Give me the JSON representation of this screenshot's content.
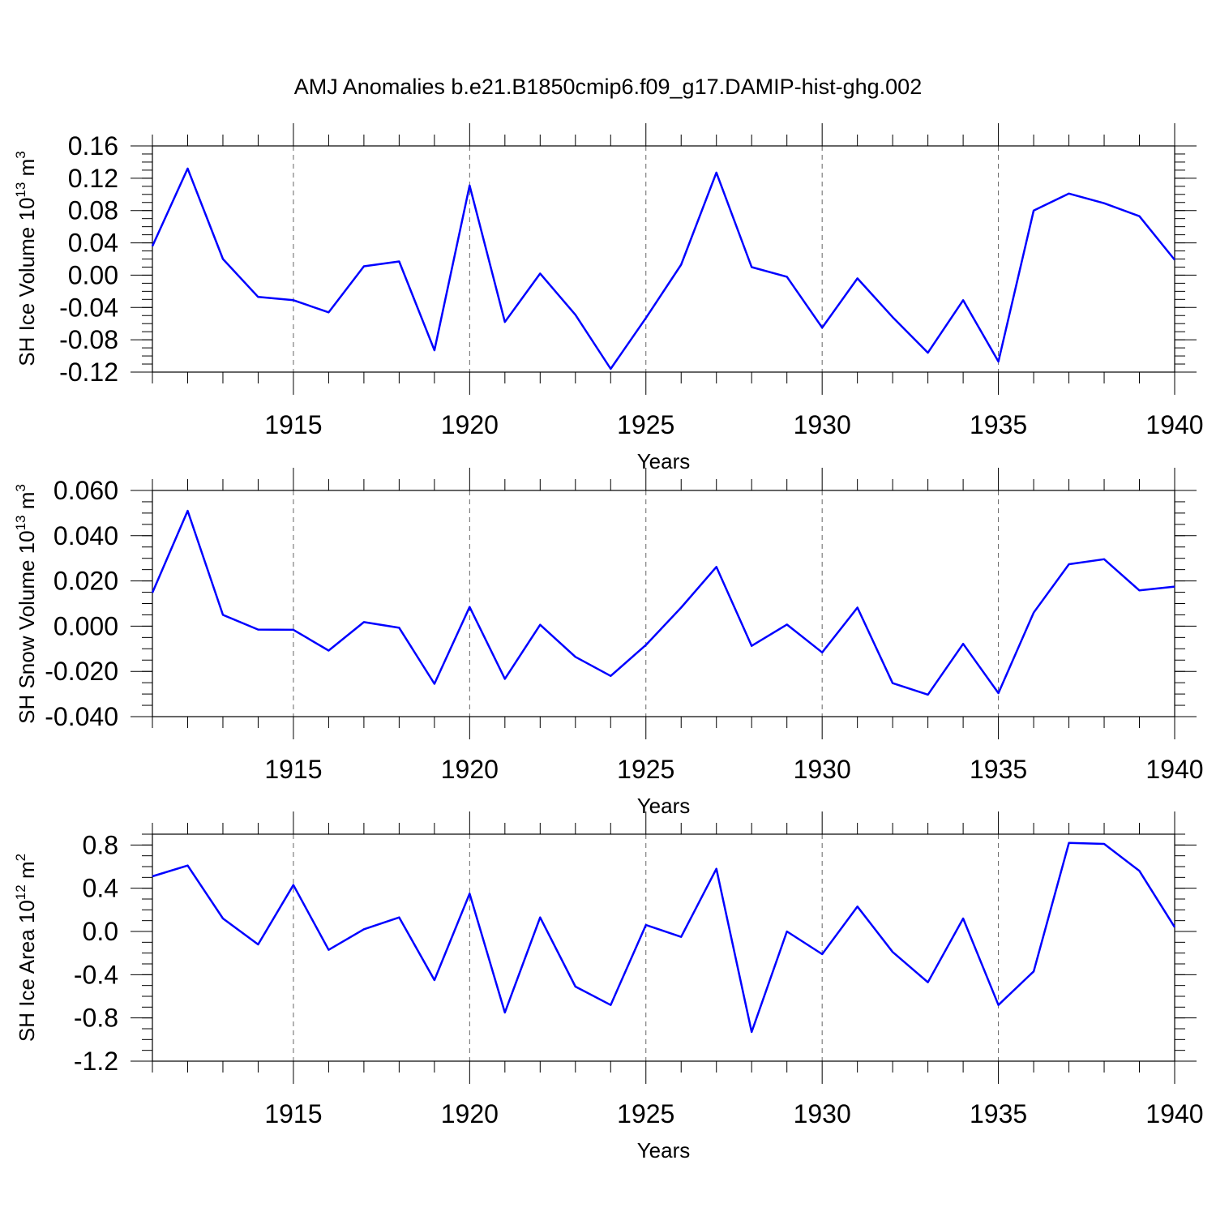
{
  "title": "AMJ Anomalies b.e21.B1850cmip6.f09_g17.DAMIP-hist-ghg.002",
  "colors": {
    "series": "#0000ff",
    "axis": "#000000",
    "grid": "#666666"
  },
  "chart_data": [
    {
      "type": "line",
      "xlabel": "Years",
      "ylabel": {
        "main": "SH Ice Volume 10",
        "exp": "13",
        "unit": " m",
        "unit_exp": "3"
      },
      "xlim": [
        1911,
        1940
      ],
      "ylim": [
        -0.12,
        0.16
      ],
      "xticks": [
        1915,
        1920,
        1925,
        1930,
        1935,
        1940
      ],
      "yticks": [
        -0.12,
        -0.08,
        -0.04,
        0.0,
        0.04,
        0.08,
        0.12,
        0.16
      ],
      "ytick_labels": [
        "-0.12",
        "-0.08",
        "-0.04",
        "0.00",
        "0.04",
        "0.08",
        "0.12",
        "0.16"
      ],
      "grid": "vertical dashed at major x ticks",
      "x": [
        1911,
        1912,
        1913,
        1914,
        1915,
        1916,
        1917,
        1918,
        1919,
        1920,
        1921,
        1922,
        1923,
        1924,
        1925,
        1926,
        1927,
        1928,
        1929,
        1930,
        1931,
        1932,
        1933,
        1934,
        1935,
        1936,
        1937,
        1938,
        1939,
        1940
      ],
      "series": [
        {
          "values": [
            0.036,
            0.132,
            0.02,
            -0.027,
            -0.031,
            -0.046,
            0.011,
            0.017,
            -0.093,
            0.111,
            -0.058,
            0.002,
            -0.049,
            -0.116,
            -0.053,
            0.013,
            0.127,
            0.01,
            -0.002,
            -0.065,
            -0.004,
            -0.052,
            -0.096,
            -0.031,
            -0.107,
            0.08,
            0.101,
            0.089,
            0.073,
            0.019
          ]
        }
      ]
    },
    {
      "type": "line",
      "xlabel": "Years",
      "ylabel": {
        "main": "SH Snow Volume 10",
        "exp": "13",
        "unit": " m",
        "unit_exp": "3"
      },
      "xlim": [
        1911,
        1940
      ],
      "ylim": [
        -0.04,
        0.06
      ],
      "xticks": [
        1915,
        1920,
        1925,
        1930,
        1935,
        1940
      ],
      "yticks": [
        -0.04,
        -0.02,
        0.0,
        0.02,
        0.04,
        0.06
      ],
      "ytick_labels": [
        "-0.040",
        "-0.020",
        "0.000",
        "0.020",
        "0.040",
        "0.060"
      ],
      "grid": "vertical dashed at major x ticks",
      "x": [
        1911,
        1912,
        1913,
        1914,
        1915,
        1916,
        1917,
        1918,
        1919,
        1920,
        1921,
        1922,
        1923,
        1924,
        1925,
        1926,
        1927,
        1928,
        1929,
        1930,
        1931,
        1932,
        1933,
        1934,
        1935,
        1936,
        1937,
        1938,
        1939,
        1940
      ],
      "series": [
        {
          "values": [
            0.0148,
            0.051,
            0.005,
            -0.0015,
            -0.0016,
            -0.0108,
            0.0018,
            -0.0007,
            -0.0255,
            0.0085,
            -0.0233,
            0.0006,
            -0.0136,
            -0.022,
            -0.0083,
            0.0082,
            0.0262,
            -0.0087,
            0.0007,
            -0.0116,
            0.0082,
            -0.0252,
            -0.0303,
            -0.0078,
            -0.0296,
            0.006,
            0.0274,
            0.0296,
            0.0158,
            0.0175
          ]
        }
      ]
    },
    {
      "type": "line",
      "xlabel": "Years",
      "ylabel": {
        "main": "SH Ice Area 10",
        "exp": "12",
        "unit": " m",
        "unit_exp": "2"
      },
      "xlim": [
        1911,
        1940
      ],
      "ylim": [
        -1.2,
        0.9
      ],
      "xticks": [
        1915,
        1920,
        1925,
        1930,
        1935,
        1940
      ],
      "yticks": [
        -1.2,
        -0.8,
        -0.4,
        0.0,
        0.4,
        0.8
      ],
      "ytick_labels": [
        "-1.2",
        "-0.8",
        "-0.4",
        "0.0",
        "0.4",
        "0.8"
      ],
      "grid": "vertical dashed at major x ticks",
      "x": [
        1911,
        1912,
        1913,
        1914,
        1915,
        1916,
        1917,
        1918,
        1919,
        1920,
        1921,
        1922,
        1923,
        1924,
        1925,
        1926,
        1927,
        1928,
        1929,
        1930,
        1931,
        1932,
        1933,
        1934,
        1935,
        1936,
        1937,
        1938,
        1939,
        1940
      ],
      "series": [
        {
          "values": [
            0.51,
            0.61,
            0.12,
            -0.12,
            0.43,
            -0.17,
            0.02,
            0.13,
            -0.45,
            0.35,
            -0.75,
            0.13,
            -0.51,
            -0.68,
            0.06,
            -0.05,
            0.58,
            -0.93,
            0.0,
            -0.21,
            0.23,
            -0.19,
            -0.47,
            0.12,
            -0.68,
            -0.37,
            0.82,
            0.81,
            0.56,
            0.04
          ]
        }
      ]
    }
  ]
}
